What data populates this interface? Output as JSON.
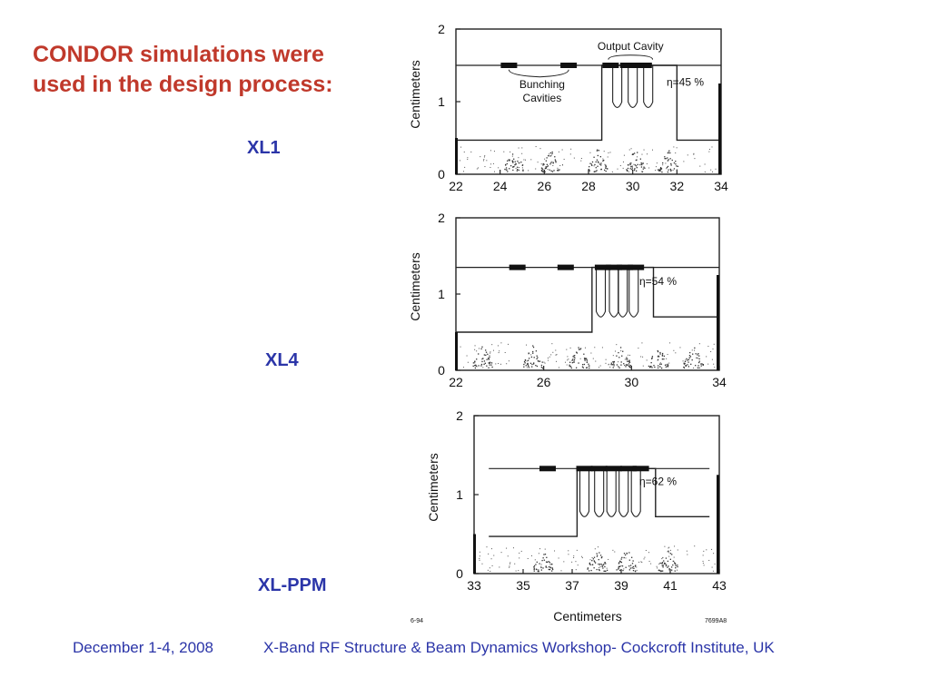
{
  "slide": {
    "title_lines": [
      "CONDOR simulations were",
      "used in the design process:"
    ],
    "footer": {
      "date": "December 1-4, 2008",
      "event": "X-Band RF Structure & Beam Dynamics Workshop- Cockcroft Institute, UK"
    },
    "figure_codes": {
      "left": "6-94",
      "right": "7699A8"
    }
  },
  "colors": {
    "title": "#c0392b",
    "labels": "#2b35a8",
    "ink": "#111111"
  },
  "chart_data": [
    {
      "type": "line",
      "name": "XL1",
      "ylabel": "Centimeters",
      "xlabel": "",
      "xlim": [
        22,
        34
      ],
      "ylim": [
        0,
        2
      ],
      "xticks": [
        22,
        24,
        26,
        28,
        30,
        32,
        34
      ],
      "yticks": [
        0,
        1,
        2
      ],
      "efficiency": "η=45 %",
      "annotations": [
        {
          "text": "Output Cavity",
          "x": 29.9,
          "y": 1.71
        },
        {
          "text": "Bunching",
          "x": 25.9,
          "y": 1.19
        },
        {
          "text": "Cavities",
          "x": 25.9,
          "y": 1.0
        }
      ],
      "profile": [
        [
          22,
          0.47
        ],
        [
          28.6,
          0.47
        ],
        [
          28.6,
          1.5
        ],
        [
          32.0,
          1.5
        ],
        [
          32.0,
          0.47
        ],
        [
          34,
          0.47
        ]
      ],
      "outer_line": [
        [
          22,
          1.5
        ],
        [
          34,
          1.5
        ]
      ],
      "output_fingers": [
        {
          "x": 29.3,
          "y": 0.92
        },
        {
          "x": 30.0,
          "y": 0.92
        },
        {
          "x": 30.7,
          "y": 0.92
        }
      ],
      "blocks": [
        24.4,
        27.1,
        29.0,
        29.8,
        30.5
      ],
      "bunch_x": [
        24.6,
        26.3,
        28.4,
        30.1,
        31.6
      ]
    },
    {
      "type": "line",
      "name": "XL4",
      "ylabel": "Centimeters",
      "xlabel": "",
      "xlim": [
        22,
        34
      ],
      "ylim": [
        0,
        2
      ],
      "xticks": [
        22,
        26,
        30,
        34
      ],
      "yticks": [
        0,
        1,
        2
      ],
      "efficiency": "η=54 %",
      "annotations": [],
      "profile": [
        [
          22,
          0.5
        ],
        [
          28.2,
          0.5
        ],
        [
          28.2,
          1.35
        ],
        [
          31.0,
          1.35
        ],
        [
          31.0,
          0.7
        ],
        [
          34,
          0.7
        ]
      ],
      "outer_line": [
        [
          22,
          1.35
        ],
        [
          34,
          1.35
        ]
      ],
      "output_fingers": [
        {
          "x": 28.6,
          "y": 0.7
        },
        {
          "x": 29.2,
          "y": 0.7
        },
        {
          "x": 29.6,
          "y": 0.7
        },
        {
          "x": 30.1,
          "y": 0.7
        }
      ],
      "blocks": [
        24.8,
        27.0,
        28.7,
        29.2,
        29.7,
        30.2
      ],
      "bunch_x": [
        23.2,
        25.5,
        27.6,
        29.5,
        31.2,
        32.8
      ]
    },
    {
      "type": "line",
      "name": "XL-PPM",
      "ylabel": "Centimeters",
      "xlabel": "Centimeters",
      "xlim": [
        33,
        43
      ],
      "ylim": [
        0,
        2
      ],
      "xticks": [
        33,
        35,
        37,
        39,
        41,
        43
      ],
      "yticks": [
        0,
        1,
        2
      ],
      "efficiency": "η=62 %",
      "annotations": [],
      "profile": [
        [
          33.6,
          0.47
        ],
        [
          37.2,
          0.47
        ],
        [
          37.2,
          1.33
        ],
        [
          40.4,
          1.33
        ],
        [
          40.4,
          0.72
        ],
        [
          42.6,
          0.72
        ]
      ],
      "outer_line": [
        [
          33.6,
          1.33
        ],
        [
          42.6,
          1.33
        ]
      ],
      "output_fingers": [
        {
          "x": 37.5,
          "y": 0.72
        },
        {
          "x": 38.1,
          "y": 0.72
        },
        {
          "x": 38.6,
          "y": 0.72
        },
        {
          "x": 39.1,
          "y": 0.72
        },
        {
          "x": 39.6,
          "y": 0.72
        }
      ],
      "blocks": [
        36.0,
        37.5,
        38.1,
        38.7,
        39.3,
        39.8
      ],
      "bunch_x": [
        35.8,
        38.0,
        39.2,
        40.9
      ]
    }
  ]
}
